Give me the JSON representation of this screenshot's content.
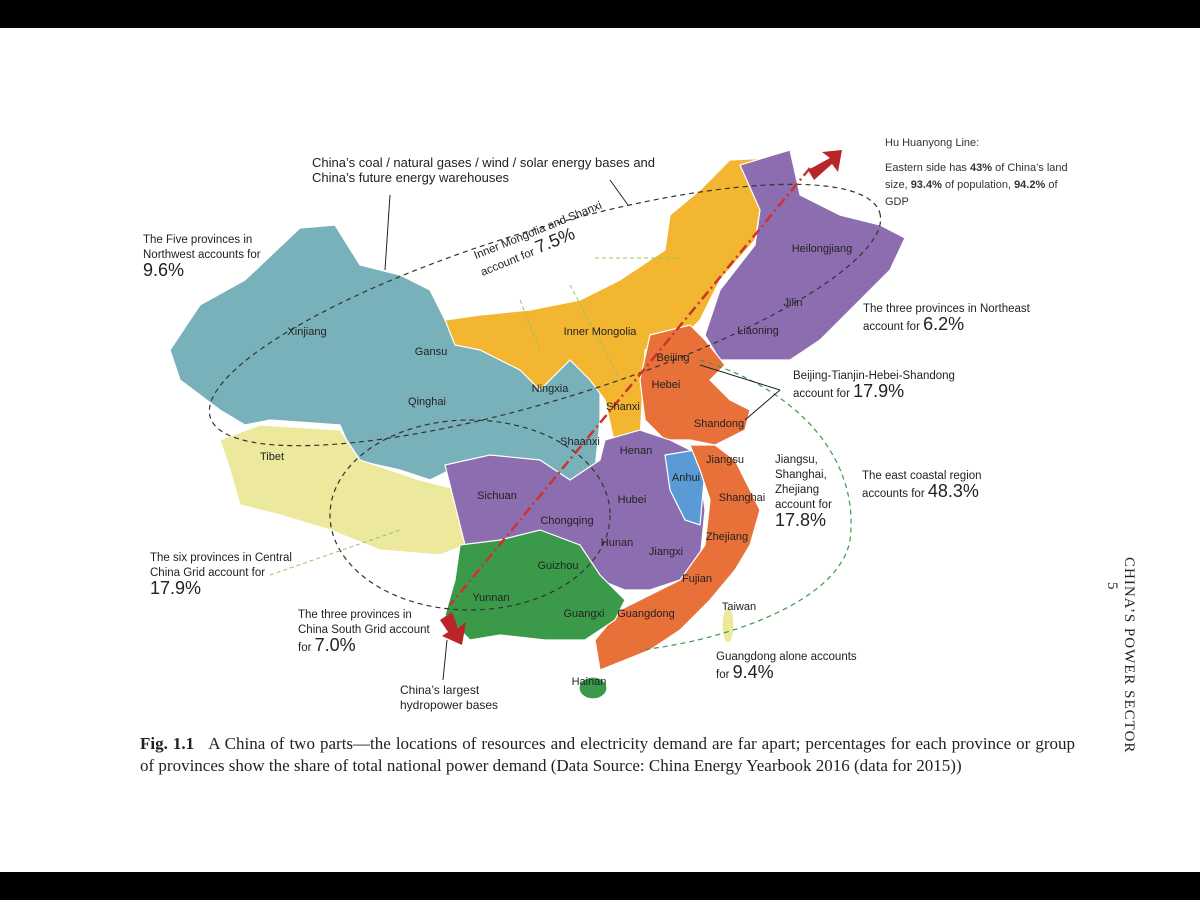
{
  "provinces": [
    "Xinjiang",
    "Gansu",
    "Qinghai",
    "Tibet",
    "Inner Mongolia",
    "Ningxia",
    "Shanxi",
    "Shaanxi",
    "Heilongjiang",
    "Jilin",
    "Liaoning",
    "Beijing",
    "Hebei",
    "Shandong",
    "Henan",
    "Jiangsu",
    "Anhui",
    "Shanghai",
    "Hubei",
    "Sichuan",
    "Chongqing",
    "Hunan",
    "Jiangxi",
    "Zhejiang",
    "Fujian",
    "Guizhou",
    "Yunnan",
    "Guangxi",
    "Guangdong",
    "Taiwan",
    "Hainan"
  ],
  "hu_line": {
    "title": "Hu Huanyong Line:",
    "parts": [
      "Eastern side has ",
      "43%",
      " of China’s land size, ",
      "93.4%",
      " of population, ",
      "94.2%",
      " of GDP"
    ]
  },
  "notes": [
    {
      "lines": [
        "China’s coal / natural gases / wind / solar energy  bases and",
        "China’s future energy warehouses"
      ]
    },
    {
      "lines": [
        "The Five provinces in",
        "Northwest accounts for"
      ],
      "value": "9.6%"
    },
    {
      "lines": [
        "Inner Mongolia and Shanxi"
      ],
      "last": "account for",
      "value": "7.5%"
    },
    {
      "lines": [
        "The three provinces in Northeast"
      ],
      "last": "account for",
      "value": "6.2%"
    },
    {
      "lines": [
        "Beijing-Tianjin-Hebei-Shandong"
      ],
      "last": "account for",
      "value": "17.9%"
    },
    {
      "lines": [
        "Jiangsu,",
        "Shanghai,",
        "Zhejiang",
        "account for"
      ],
      "value": "17.8%"
    },
    {
      "lines": [
        "The east coastal region"
      ],
      "last": "accounts for",
      "value": "48.3%"
    },
    {
      "lines": [
        "The six provinces in Central",
        "China Grid account for"
      ],
      "value": "17.9%"
    },
    {
      "lines": [
        "The three provinces in",
        "China South Grid account"
      ],
      "last": "for",
      "value": "7.0%"
    },
    {
      "lines": [
        "China’s largest",
        "hydropower bases"
      ]
    },
    {
      "lines": [
        "Guangdong alone accounts"
      ],
      "last": "for",
      "value": "9.4%"
    }
  ],
  "caption": {
    "label": "Fig. 1.1",
    "text": "A China of two parts—the locations of resources and electricity demand are far apart; percentages for each province or group of provinces show the share of total national power demand (Data Source: China Energy Yearbook 2016 (data for 2015))"
  },
  "running_head": {
    "title": "CHINA’S POWER SECTOR",
    "page": "5"
  }
}
